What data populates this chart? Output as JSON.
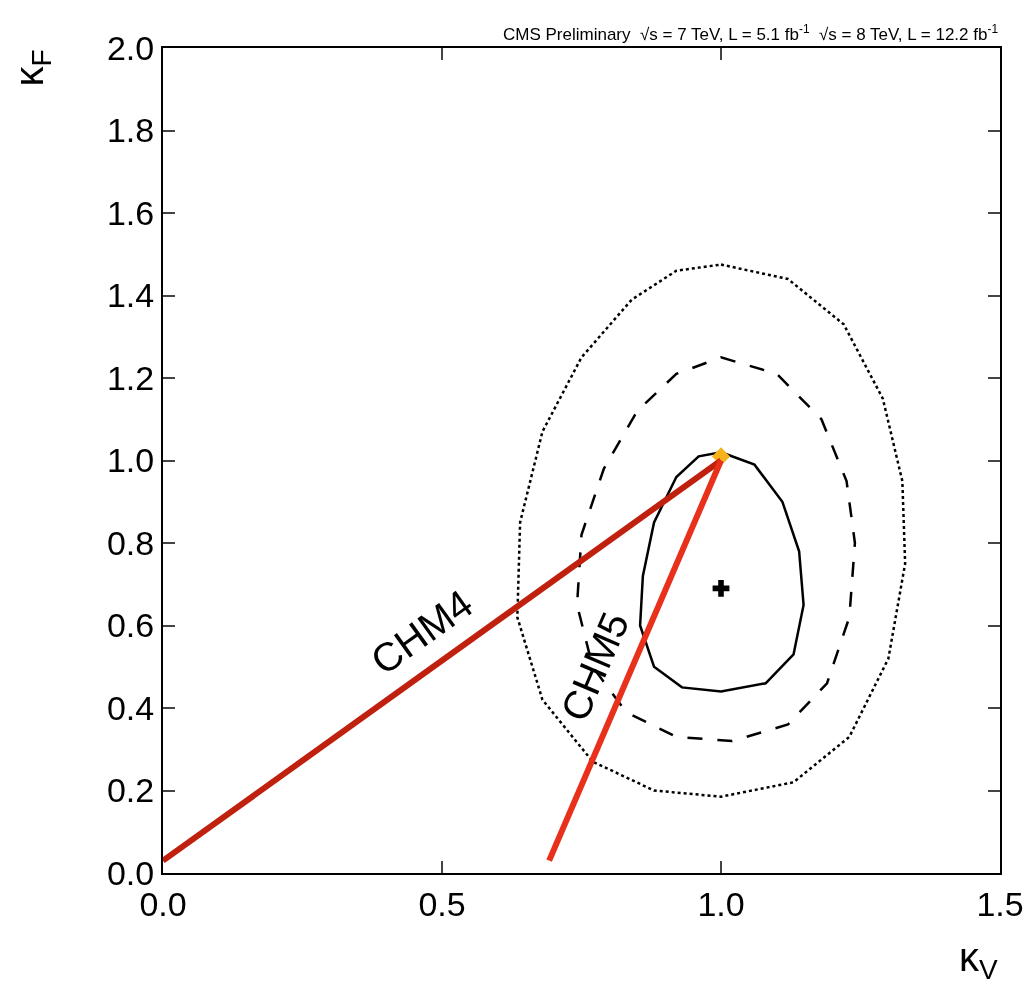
{
  "chart_data": {
    "type": "line",
    "title": "CMS Preliminary  √s = 7 TeV, L = 5.1 fb$^{-1}$  √s = 8 TeV, L = 12.2 fb$^{-1}$",
    "xlabel": "κ$_{V}$",
    "ylabel": "κ$_{F}$",
    "xlim": [
      0,
      1.5
    ],
    "ylim": [
      0,
      2.0
    ],
    "xticks": [
      {
        "value": 0,
        "label": "0.0"
      },
      0.5,
      {
        "value": 1,
        "label": "1.0"
      },
      1.5
    ],
    "yticks": [
      {
        "value": 0,
        "label": "0.0"
      },
      0.2,
      0.4,
      0.6,
      0.8,
      {
        "value": 1,
        "label": "1.0"
      },
      1.2,
      1.4,
      1.6,
      1.8,
      {
        "value": 2,
        "label": "2.0"
      }
    ],
    "grid": false,
    "legend": false,
    "series": [
      {
        "type": "scatter",
        "marker": "diamond",
        "color": "#f5b21b",
        "x": [
          1.0
        ],
        "values": [
          1.01
        ]
      },
      {
        "name": "CHM4",
        "color": "#c0200e",
        "line_style": "solid",
        "x": [
          0,
          1.0
        ],
        "values": [
          0.03,
          1.0
        ]
      },
      {
        "name": "CHM5",
        "color": "#e8301a",
        "line_style": "solid",
        "x": [
          0.692,
          1.0
        ],
        "values": [
          0.03,
          1.0
        ]
      },
      {
        "type": "scatter",
        "marker": "cross",
        "color": "#000000",
        "x": [
          1.0
        ],
        "values": [
          0.69
        ]
      }
    ]
  }
}
